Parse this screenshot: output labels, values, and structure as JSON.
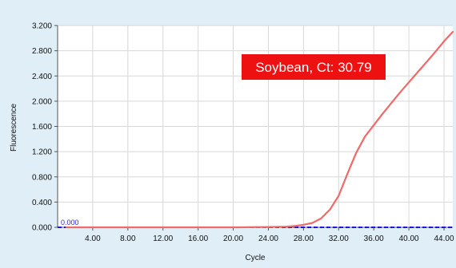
{
  "chart_data": {
    "type": "line",
    "xlabel": "Cycle",
    "ylabel": "Fluorescence",
    "xlim": [
      0,
      45
    ],
    "ylim": [
      0,
      3.2
    ],
    "x_ticks": [
      "4.00",
      "8.00",
      "12.00",
      "16.00",
      "20.00",
      "24.00",
      "28.00",
      "32.00",
      "36.00",
      "40.00",
      "44.00"
    ],
    "y_ticks": [
      "0.000",
      "0.400",
      "0.800",
      "1.200",
      "1.600",
      "2.000",
      "2.400",
      "2.800",
      "3.200"
    ],
    "grid": true,
    "annotation": "Soybean, Ct: 30.79",
    "threshold": {
      "label": "0.000",
      "value": 0.0
    },
    "series": [
      {
        "color": "#f06a6a",
        "x": [
          1,
          4,
          8,
          12,
          16,
          20,
          24,
          26,
          27,
          28,
          29,
          30,
          31,
          32,
          33,
          34,
          35,
          36,
          37,
          38,
          39,
          40,
          41,
          42,
          43,
          44,
          45
        ],
        "y": [
          0.0,
          0.0,
          0.0,
          0.0,
          0.0,
          0.0,
          0.005,
          0.01,
          0.02,
          0.04,
          0.07,
          0.14,
          0.28,
          0.5,
          0.85,
          1.18,
          1.44,
          1.62,
          1.8,
          1.97,
          2.14,
          2.3,
          2.46,
          2.62,
          2.78,
          2.95,
          3.1
        ]
      }
    ]
  },
  "colors": {
    "background": "#dfeef7",
    "plot_background": "#ffffff",
    "annotation_box": "#ee1111",
    "threshold_line": "#1a1acc",
    "curve": "#f06a6a"
  }
}
